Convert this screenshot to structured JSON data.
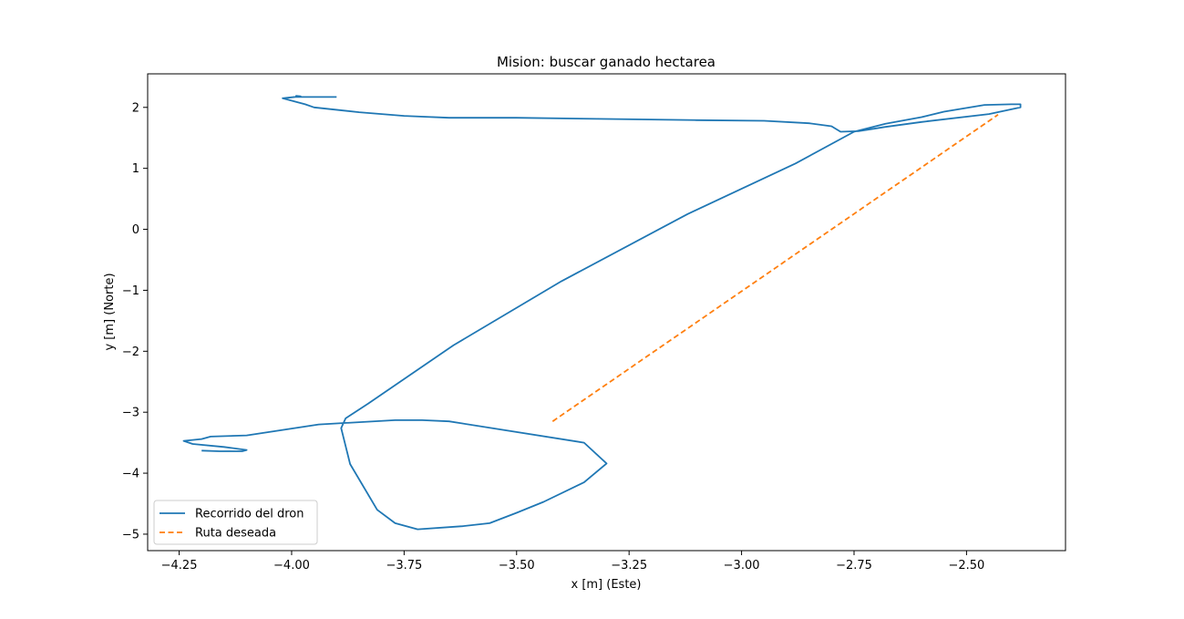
{
  "chart_data": {
    "type": "line",
    "title": "Mision: buscar ganado hectarea",
    "xlabel": "x [m] (Este)",
    "ylabel": "y [m] (Norte)",
    "xlim": [
      -4.32,
      -2.28
    ],
    "ylim": [
      -5.27,
      2.55
    ],
    "xticks": [
      {
        "value": -4.25,
        "label": "−4.25"
      },
      {
        "value": -4.0,
        "label": "−4.00"
      },
      {
        "value": -3.75,
        "label": "−3.75"
      },
      {
        "value": -3.5,
        "label": "−3.50"
      },
      {
        "value": -3.25,
        "label": "−3.25"
      },
      {
        "value": -3.0,
        "label": "−3.00"
      },
      {
        "value": -2.75,
        "label": "−2.75"
      },
      {
        "value": -2.5,
        "label": "−2.50"
      }
    ],
    "yticks": [
      {
        "value": 2,
        "label": "2"
      },
      {
        "value": 1,
        "label": "1"
      },
      {
        "value": 0,
        "label": "0"
      },
      {
        "value": -1,
        "label": "−1"
      },
      {
        "value": -2,
        "label": "−2"
      },
      {
        "value": -3,
        "label": "−3"
      },
      {
        "value": -4,
        "label": "−4"
      },
      {
        "value": -5,
        "label": "−5"
      }
    ],
    "grid": false,
    "legend_position": "lower-left",
    "series": [
      {
        "name": "Recorrido del dron",
        "color": "#1f77b4",
        "dash": "solid",
        "x": [
          -3.9,
          -3.99,
          -3.99,
          -3.98,
          -4.02,
          -3.99,
          -3.97,
          -3.95,
          -3.85,
          -3.75,
          -3.65,
          -3.5,
          -3.3,
          -3.1,
          -2.95,
          -2.85,
          -2.8,
          -2.78,
          -2.74,
          -2.68,
          -2.6,
          -2.45,
          -2.38,
          -2.38,
          -2.4,
          -2.46,
          -2.55,
          -2.6,
          -2.68,
          -2.75,
          -2.88,
          -3.12,
          -3.4,
          -3.64,
          -3.83,
          -3.88,
          -3.89,
          -3.87,
          -3.81,
          -3.77,
          -3.72,
          -3.62,
          -3.56,
          -3.5,
          -3.44,
          -3.35,
          -3.3,
          -3.35,
          -3.65,
          -3.71,
          -3.77,
          -3.94,
          -4.1,
          -4.18,
          -4.2,
          -4.24,
          -4.22,
          -4.15,
          -4.1,
          -4.11,
          -4.16,
          -4.2
        ],
        "y": [
          2.17,
          2.17,
          2.19,
          2.18,
          2.15,
          2.09,
          2.05,
          2.0,
          1.92,
          1.86,
          1.83,
          1.83,
          1.81,
          1.79,
          1.78,
          1.74,
          1.69,
          1.6,
          1.61,
          1.68,
          1.76,
          1.89,
          2.0,
          2.05,
          2.05,
          2.04,
          1.93,
          1.84,
          1.73,
          1.6,
          1.08,
          0.25,
          -0.85,
          -1.9,
          -2.86,
          -3.1,
          -3.26,
          -3.85,
          -4.6,
          -4.82,
          -4.92,
          -4.87,
          -4.82,
          -4.65,
          -4.47,
          -4.15,
          -3.84,
          -3.5,
          -3.15,
          -3.13,
          -3.13,
          -3.2,
          -3.38,
          -3.4,
          -3.44,
          -3.47,
          -3.52,
          -3.57,
          -3.62,
          -3.64,
          -3.64,
          -3.63
        ]
      },
      {
        "name": "Ruta deseada",
        "color": "#ff7f0e",
        "dash": "dashed",
        "x": [
          -3.42,
          -2.43
        ],
        "y": [
          -3.15,
          1.88
        ]
      }
    ]
  }
}
